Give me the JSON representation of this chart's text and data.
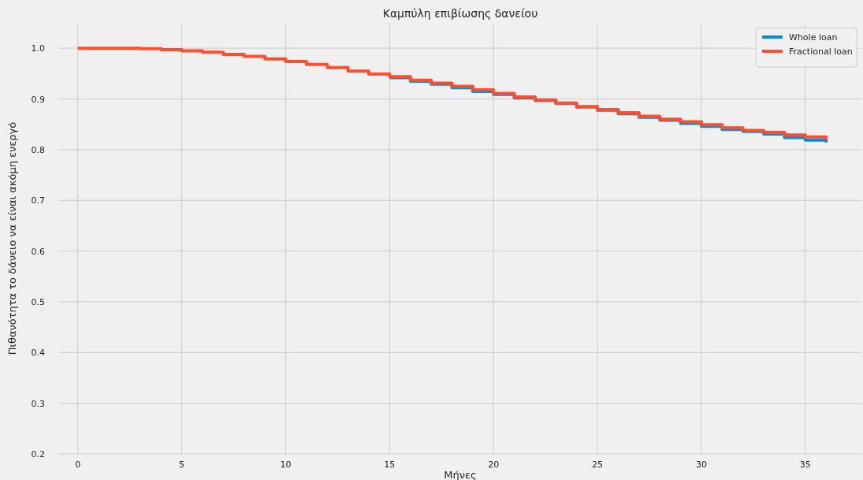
{
  "chart_data": {
    "type": "step",
    "title": "Καμπύλη επιβίωσης δανείου",
    "xlabel": "Μήνες",
    "ylabel": "Πιθανότητα το δάνειο να είναι ακόμη ενεργό",
    "x": [
      0,
      1,
      2,
      3,
      4,
      5,
      6,
      7,
      8,
      9,
      10,
      11,
      12,
      13,
      14,
      15,
      16,
      17,
      18,
      19,
      20,
      21,
      22,
      23,
      24,
      25,
      26,
      27,
      28,
      29,
      30,
      31,
      32,
      33,
      34,
      35,
      36
    ],
    "series": [
      {
        "name": "Whole loan",
        "color": "#008fd5",
        "values": [
          null,
          null,
          null,
          null,
          null,
          null,
          null,
          null,
          null,
          null,
          null,
          null,
          null,
          null,
          null,
          0.942,
          0.935,
          0.929,
          0.922,
          0.915,
          0.909,
          0.902,
          0.897,
          0.891,
          0.884,
          0.878,
          0.871,
          0.864,
          0.858,
          0.852,
          0.846,
          0.84,
          0.836,
          0.831,
          0.824,
          0.819,
          0.814
        ]
      },
      {
        "name": "Fractional loan",
        "color": "#fc4f30",
        "values": [
          1.0,
          1.0,
          1.0,
          0.999,
          0.997,
          0.995,
          0.992,
          0.988,
          0.984,
          0.979,
          0.974,
          0.968,
          0.962,
          0.955,
          0.949,
          0.944,
          0.937,
          0.931,
          0.925,
          0.918,
          0.911,
          0.904,
          0.898,
          0.892,
          0.885,
          0.879,
          0.873,
          0.866,
          0.86,
          0.855,
          0.849,
          0.843,
          0.838,
          0.834,
          0.829,
          0.825,
          0.82
        ]
      }
    ],
    "xlim": [
      -0.9,
      37.7
    ],
    "xticks": [
      0,
      5,
      10,
      15,
      20,
      25,
      30,
      35
    ],
    "ylim": [
      0.2,
      1.05
    ],
    "yticks": [
      0.2,
      0.3,
      0.4,
      0.5,
      0.6,
      0.7,
      0.8,
      0.9,
      {
        "value": 1,
        "label": "1.0"
      }
    ],
    "grid": true,
    "legend": "top right"
  }
}
